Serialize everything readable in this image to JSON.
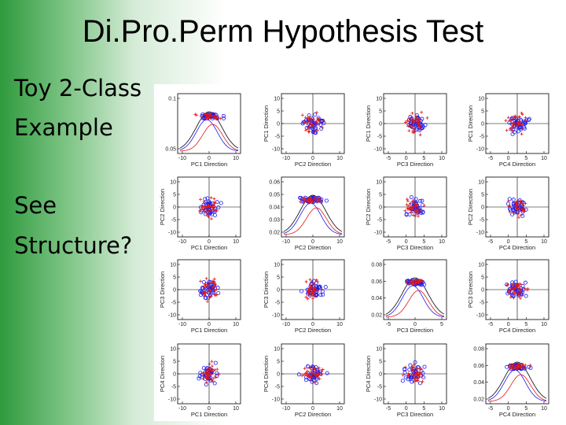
{
  "slide": {
    "title": "Di.Pro.Perm Hypothesis Test",
    "bullets": [
      "Toy 2-Class",
      "Example",
      "See",
      "Structure?"
    ]
  },
  "colors": {
    "class_a": "#1a1aee",
    "class_b": "#e01818",
    "pooled": "#000000"
  },
  "figure": {
    "panels": [
      [
        {
          "type": "density",
          "ticks_x": [
            "-10",
            "0",
            "10"
          ],
          "ticks_y": [
            "0.1",
            "0.05"
          ],
          "xlabel": "PC1 Direction",
          "ylabel": ""
        },
        {
          "type": "scatter",
          "ticks_x": [
            "-10",
            "0",
            "10"
          ],
          "ticks_y": [
            "10",
            "5",
            "0",
            "-5",
            "-10"
          ],
          "xlabel": "PC2 Direction",
          "ylabel": "PC1 Direction"
        },
        {
          "type": "scatter",
          "ticks_x": [
            "-5",
            "0",
            "5",
            "10"
          ],
          "ticks_y": [
            "10",
            "5",
            "0",
            "-5",
            "-10"
          ],
          "xlabel": "PC3 Direction",
          "ylabel": "PC1 Direction"
        },
        {
          "type": "scatter",
          "ticks_x": [
            "-5",
            "0",
            "5",
            "10"
          ],
          "ticks_y": [
            "10",
            "5",
            "0",
            "-5",
            "-10"
          ],
          "xlabel": "PC4 Direction",
          "ylabel": "PC1 Direction"
        }
      ],
      [
        {
          "type": "scatter",
          "ticks_x": [
            "-10",
            "0",
            "10"
          ],
          "ticks_y": [
            "10",
            "5",
            "0",
            "-5",
            "-10"
          ],
          "xlabel": "PC1 Direction",
          "ylabel": "PC2 Direction"
        },
        {
          "type": "density",
          "ticks_x": [
            "-10",
            "0",
            "10"
          ],
          "ticks_y": [
            "0.06",
            "0.05",
            "0.04",
            "0.03",
            "0.02"
          ],
          "xlabel": "PC2 Direction",
          "ylabel": ""
        },
        {
          "type": "scatter",
          "ticks_x": [
            "-5",
            "0",
            "5",
            "10"
          ],
          "ticks_y": [
            "10",
            "5",
            "0",
            "-5",
            "-10"
          ],
          "xlabel": "PC3 Direction",
          "ylabel": "PC2 Direction"
        },
        {
          "type": "scatter",
          "ticks_x": [
            "-5",
            "0",
            "5",
            "10"
          ],
          "ticks_y": [
            "10",
            "5",
            "0",
            "-5",
            "-10"
          ],
          "xlabel": "PC4 Direction",
          "ylabel": "PC2 Direction"
        }
      ],
      [
        {
          "type": "scatter",
          "ticks_x": [
            "-10",
            "0",
            "10"
          ],
          "ticks_y": [
            "10",
            "5",
            "0",
            "-5",
            "-10"
          ],
          "xlabel": "PC1 Direction",
          "ylabel": "PC3 Direction"
        },
        {
          "type": "scatter",
          "ticks_x": [
            "-10",
            "0",
            "10"
          ],
          "ticks_y": [
            "10",
            "5",
            "0",
            "-5",
            "-10"
          ],
          "xlabel": "PC2 Direction",
          "ylabel": "PC3 Direction"
        },
        {
          "type": "density",
          "ticks_x": [
            "-5",
            "0",
            "5"
          ],
          "ticks_y": [
            "0.08",
            "0.06",
            "0.04",
            "0.02"
          ],
          "xlabel": "PC3 Direction",
          "ylabel": ""
        },
        {
          "type": "scatter",
          "ticks_x": [
            "-5",
            "0",
            "5",
            "10"
          ],
          "ticks_y": [
            "10",
            "5",
            "0",
            "-5",
            "-10"
          ],
          "xlabel": "PC4 Direction",
          "ylabel": "PC3 Direction"
        }
      ],
      [
        {
          "type": "scatter",
          "ticks_x": [
            "-10",
            "0",
            "10"
          ],
          "ticks_y": [
            "10",
            "5",
            "0",
            "-5",
            "-10"
          ],
          "xlabel": "PC1 Direction",
          "ylabel": "PC4 Direction"
        },
        {
          "type": "scatter",
          "ticks_x": [
            "-10",
            "0",
            "10"
          ],
          "ticks_y": [
            "10",
            "5",
            "0",
            "-5",
            "-10"
          ],
          "xlabel": "PC2 Direction",
          "ylabel": "PC4 Direction"
        },
        {
          "type": "scatter",
          "ticks_x": [
            "-5",
            "0",
            "5",
            "10"
          ],
          "ticks_y": [
            "10",
            "5",
            "0",
            "-5",
            "-10"
          ],
          "xlabel": "PC3 Direction",
          "ylabel": "PC4 Direction"
        },
        {
          "type": "density",
          "ticks_x": [
            "-5",
            "0",
            "5",
            "10"
          ],
          "ticks_y": [
            "0.08",
            "0.06",
            "0.04",
            "0.02"
          ],
          "xlabel": "PC4 Direction",
          "ylabel": ""
        }
      ]
    ]
  }
}
